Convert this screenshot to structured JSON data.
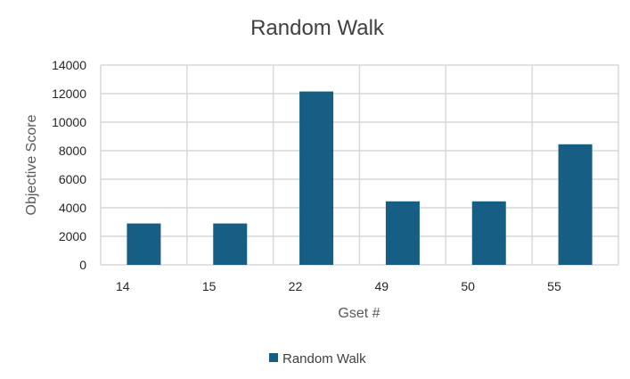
{
  "chart_data": {
    "type": "bar",
    "title": "Random Walk",
    "xlabel": "Gset #",
    "ylabel": "Objective Score",
    "categories": [
      "14",
      "15",
      "22",
      "49",
      "50",
      "55"
    ],
    "series": [
      {
        "name": "Random Walk",
        "values": [
          2900,
          2900,
          12150,
          4450,
          4450,
          8450
        ],
        "color": "#165e83"
      }
    ],
    "ylim": [
      0,
      14000
    ],
    "yticks": [
      0,
      2000,
      4000,
      6000,
      8000,
      10000,
      12000,
      14000
    ],
    "ytick_labels": [
      "0",
      "2000",
      "4000",
      "6000",
      "8000",
      "10000",
      "12000",
      "14000"
    ],
    "grid": true,
    "legend_position": "bottom"
  }
}
